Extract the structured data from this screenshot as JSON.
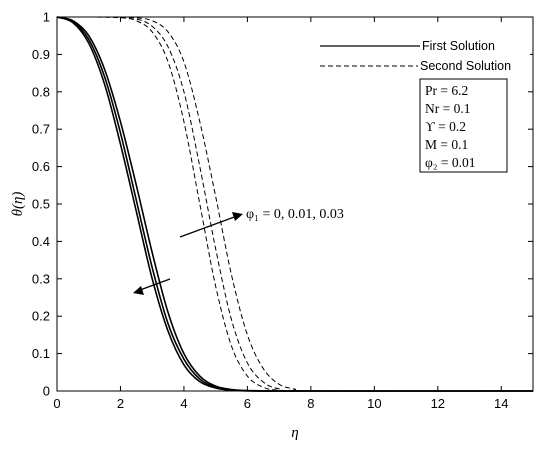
{
  "chart_data": {
    "type": "line",
    "title": "",
    "xlabel": "η",
    "ylabel": "θ(η)",
    "xlim": [
      0,
      15
    ],
    "ylim": [
      0,
      1
    ],
    "xticks": [
      0,
      2,
      4,
      6,
      8,
      10,
      12,
      14
    ],
    "yticks": [
      0,
      0.1,
      0.2,
      0.3,
      0.4,
      0.5,
      0.6,
      0.7,
      0.8,
      0.9,
      1
    ],
    "grid": false,
    "legend_position": "top-right",
    "legend": [
      {
        "label": "First Solution",
        "style": "solid"
      },
      {
        "label": "Second Solution",
        "style": "dashed"
      }
    ],
    "parameters": [
      "Pr = 6.2",
      "Nr = 0.1",
      "ϒ = 0.2",
      "M = 0.1",
      "φ₂ = 0.01"
    ],
    "annotation": "φ₁ = 0, 0.01, 0.03",
    "series": [
      {
        "solution": "First Solution",
        "style": "solid",
        "x": [
          0,
          0.5,
          1,
          1.5,
          2,
          2.5,
          3,
          3.5,
          4,
          4.5,
          5,
          5.5,
          6,
          7,
          8,
          15
        ],
        "y": [
          1,
          0.985,
          0.93,
          0.82,
          0.66,
          0.48,
          0.3,
          0.16,
          0.07,
          0.025,
          0.008,
          0.002,
          0,
          0,
          0,
          0
        ]
      },
      {
        "solution": "First Solution",
        "style": "solid",
        "x": [
          0,
          0.5,
          1,
          1.5,
          2,
          2.5,
          3,
          3.5,
          4,
          4.5,
          5,
          5.5,
          6,
          7,
          8,
          15
        ],
        "y": [
          1,
          0.988,
          0.94,
          0.84,
          0.69,
          0.51,
          0.33,
          0.18,
          0.085,
          0.032,
          0.01,
          0.003,
          0.001,
          0,
          0,
          0
        ]
      },
      {
        "solution": "First Solution",
        "style": "solid",
        "x": [
          0,
          0.5,
          1,
          1.5,
          2,
          2.5,
          3,
          3.5,
          4,
          4.5,
          5,
          5.5,
          6,
          7,
          8,
          15
        ],
        "y": [
          1,
          0.99,
          0.95,
          0.86,
          0.72,
          0.55,
          0.37,
          0.21,
          0.1,
          0.04,
          0.013,
          0.004,
          0.001,
          0,
          0,
          0
        ]
      },
      {
        "solution": "Second Solution",
        "style": "dashed",
        "x": [
          0,
          1,
          2,
          2.5,
          3,
          3.5,
          4,
          4.5,
          5,
          5.5,
          6,
          6.5,
          7,
          8,
          15
        ],
        "y": [
          1,
          1,
          0.998,
          0.99,
          0.96,
          0.88,
          0.72,
          0.5,
          0.28,
          0.12,
          0.04,
          0.01,
          0.002,
          0,
          0
        ]
      },
      {
        "solution": "Second Solution",
        "style": "dashed",
        "x": [
          0,
          1,
          2,
          2.5,
          3,
          3.5,
          4,
          4.5,
          5,
          5.5,
          6,
          6.5,
          7,
          8,
          15
        ],
        "y": [
          1,
          1,
          0.999,
          0.995,
          0.975,
          0.92,
          0.8,
          0.6,
          0.38,
          0.19,
          0.075,
          0.024,
          0.006,
          0,
          0
        ]
      },
      {
        "solution": "Second Solution",
        "style": "dashed",
        "x": [
          0,
          1,
          2,
          2.5,
          3,
          3.5,
          4,
          4.5,
          5,
          5.5,
          6,
          6.5,
          7,
          7.5,
          8,
          15
        ],
        "y": [
          1,
          1,
          1,
          0.998,
          0.99,
          0.96,
          0.88,
          0.72,
          0.52,
          0.31,
          0.15,
          0.06,
          0.018,
          0.005,
          0,
          0
        ]
      }
    ]
  }
}
